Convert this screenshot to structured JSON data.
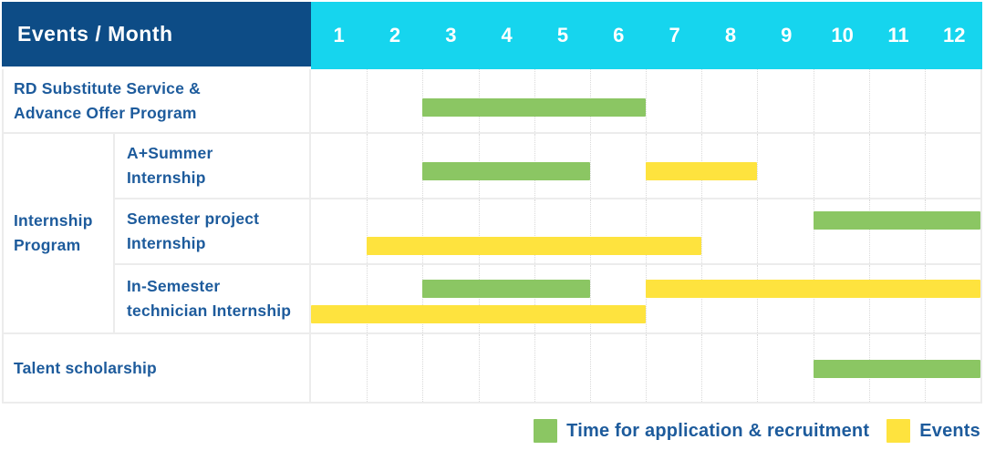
{
  "title_cell": "Events / Month",
  "months": [
    "1",
    "2",
    "3",
    "4",
    "5",
    "6",
    "7",
    "8",
    "9",
    "10",
    "11",
    "12"
  ],
  "colors": {
    "header_navy": "#0d4c86",
    "header_cyan": "#16d5ee",
    "label_blue": "#1d5b9c",
    "application_green": "#8bc663",
    "events_yellow": "#fee33e",
    "grid_gray": "#ececec"
  },
  "legend": [
    {
      "series": "application",
      "label": "Time for application & recruitment"
    },
    {
      "series": "events",
      "label": "Events"
    }
  ],
  "chart_data": {
    "type": "bar",
    "variant": "gantt",
    "title": "Events / Month",
    "x_axis": {
      "unit": "month",
      "ticks": [
        "1",
        "2",
        "3",
        "4",
        "5",
        "6",
        "7",
        "8",
        "9",
        "10",
        "11",
        "12"
      ],
      "range": [
        1,
        12
      ]
    },
    "grid": true,
    "legend_position": "bottom-right",
    "series": [
      {
        "key": "application",
        "name": "Time for application & recruitment",
        "color": "#8bc663"
      },
      {
        "key": "events",
        "name": "Events",
        "color": "#fee33e"
      }
    ],
    "group_label_lines": [
      "Internship",
      "Program"
    ],
    "rows": [
      {
        "group": "",
        "label": "RD Substitute Service & Advance Offer Program",
        "label_lines": [
          "RD Substitute Service &",
          "Advance Offer Program"
        ],
        "bars": [
          {
            "series": "application",
            "from_month": 3,
            "to_month": 6,
            "lane": 0
          }
        ]
      },
      {
        "group": "Internship Program",
        "label": "A+Summer Internship",
        "label_lines": [
          "A+Summer",
          "Internship"
        ],
        "bars": [
          {
            "series": "application",
            "from_month": 3,
            "to_month": 5,
            "lane": 0
          },
          {
            "series": "events",
            "from_month": 7,
            "to_month": 8,
            "lane": 0
          }
        ]
      },
      {
        "group": "Internship Program",
        "label": "Semester project Internship",
        "label_lines": [
          "Semester project",
          "Internship"
        ],
        "bars": [
          {
            "series": "application",
            "from_month": 10,
            "to_month": 12,
            "lane": 0
          },
          {
            "series": "events",
            "from_month": 2,
            "to_month": 7,
            "lane": 1
          }
        ]
      },
      {
        "group": "Internship Program",
        "label": "In-Semester technician Internship",
        "label_lines": [
          "In-Semester",
          "technician Internship"
        ],
        "bars": [
          {
            "series": "application",
            "from_month": 3,
            "to_month": 5,
            "lane": 0
          },
          {
            "series": "events",
            "from_month": 7,
            "to_month": 12,
            "lane": 0
          },
          {
            "series": "events",
            "from_month": 1,
            "to_month": 6,
            "lane": 1
          }
        ]
      },
      {
        "group": "",
        "label": "Talent scholarship",
        "label_lines": [
          "Talent scholarship"
        ],
        "bars": [
          {
            "series": "application",
            "from_month": 10,
            "to_month": 12,
            "lane": 0
          }
        ]
      }
    ]
  }
}
